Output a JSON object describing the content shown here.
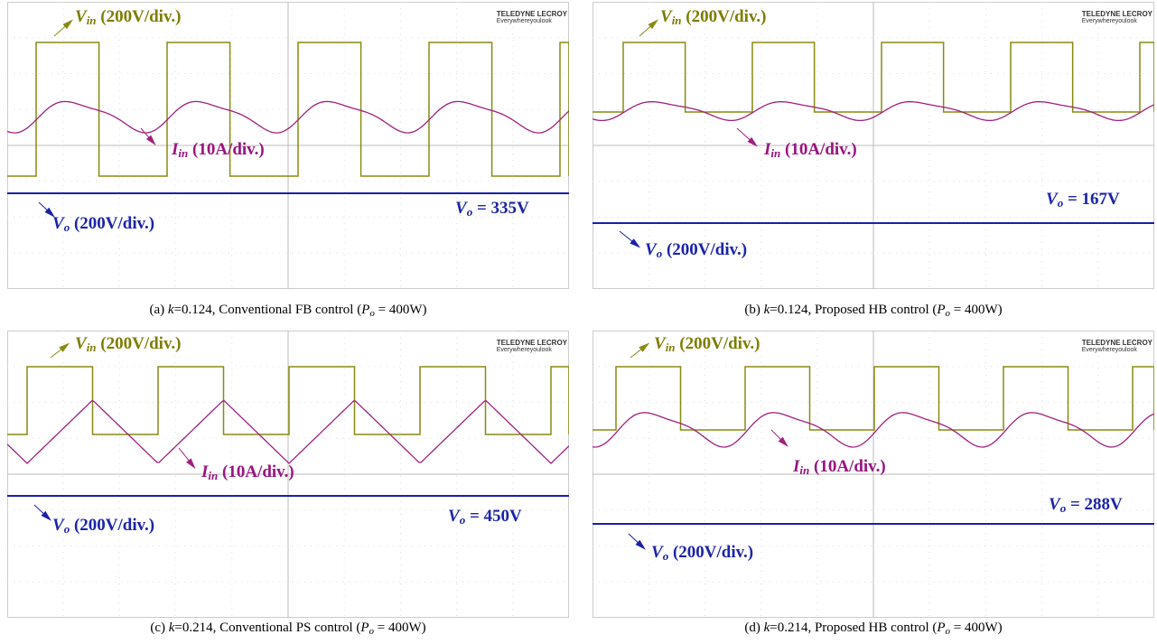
{
  "panels": [
    {
      "brand": "TELEDYNE LECROY",
      "tagline": "Everywhereyoulook",
      "vin": {
        "symbol": "V",
        "sub": "in",
        "scale": "(200V/div.)"
      },
      "iin": {
        "symbol": "I",
        "sub": "in",
        "scale": "(10A/div.)"
      },
      "vo": {
        "symbol": "V",
        "sub": "o",
        "scale": "(200V/div.)"
      },
      "vo_value": {
        "symbol": "V",
        "sub": "o",
        "text": "= 335V"
      },
      "caption": {
        "letter": "(a)",
        "k": "k",
        "rest": "=0.124, Conventional FB control (",
        "p": "P",
        "p_sub": "o",
        "end": "= 400W)"
      }
    },
    {
      "brand": "TELEDYNE LECROY",
      "tagline": "Everywhereyoulook",
      "vin": {
        "symbol": "V",
        "sub": "in",
        "scale": "(200V/div.)"
      },
      "iin": {
        "symbol": "I",
        "sub": "in",
        "scale": "(10A/div.)"
      },
      "vo": {
        "symbol": "V",
        "sub": "o",
        "scale": "(200V/div.)"
      },
      "vo_value": {
        "symbol": "V",
        "sub": "o",
        "text": "= 167V"
      },
      "caption": {
        "letter": "(b)",
        "k": "k",
        "rest": "=0.124, Proposed HB control (",
        "p": "P",
        "p_sub": "o",
        "end": "= 400W)"
      }
    },
    {
      "brand": "TELEDYNE LECROY",
      "tagline": "Everywhereyoulook",
      "vin": {
        "symbol": "V",
        "sub": "in",
        "scale": "(200V/div.)"
      },
      "iin": {
        "symbol": "I",
        "sub": "in",
        "scale": "(10A/div.)"
      },
      "vo": {
        "symbol": "V",
        "sub": "o",
        "scale": "(200V/div.)"
      },
      "vo_value": {
        "symbol": "V",
        "sub": "o",
        "text": "= 450V"
      },
      "caption": {
        "letter": "(c)",
        "k": "k",
        "rest": "=0.214, Conventional PS control (",
        "p": "P",
        "p_sub": "o",
        "end": "= 400W)"
      }
    },
    {
      "brand": "TELEDYNE LECROY",
      "tagline": "Everywhereyoulook",
      "vin": {
        "symbol": "V",
        "sub": "in",
        "scale": "(200V/div.)"
      },
      "iin": {
        "symbol": "I",
        "sub": "in",
        "scale": "(10A/div.)"
      },
      "vo": {
        "symbol": "V",
        "sub": "o",
        "scale": "(200V/div.)"
      },
      "vo_value": {
        "symbol": "V",
        "sub": "o",
        "text": "= 288V"
      },
      "caption": {
        "letter": "(d)",
        "k": "k",
        "rest": "=0.214, Proposed HB control (",
        "p": "P",
        "p_sub": "o",
        "end": "= 400W)"
      }
    }
  ]
}
